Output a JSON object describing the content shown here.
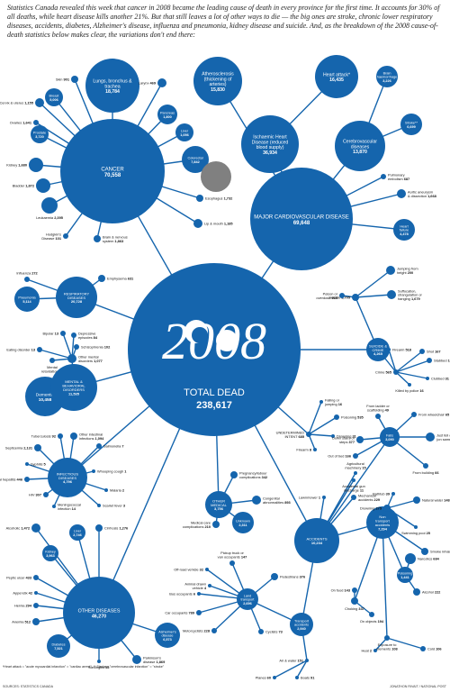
{
  "intro": "Statistics Canada revealed this week that cancer in 2008 became the leading cause of death in every province for the first time. It accounts for 30% of all deaths, while heart disease kills another 21%. But that still leaves a lot of other ways to die — the big ones are stroke, chronic lower respiratory diseases, accidents, diabetes, Alzheimer's disease, influenza and pneumonia, kidney disease and suicide. And, as the breakdown of the 2008 cause-of-death statistics below makes clear, the variations don't end there:",
  "footnote": "*Heart attack = \"acute myocardial infarction\" = \"cardiac arrest\". ** Stroke = \"cerebrovascular infarction\" = \"stroke\"",
  "source_left": "SOURCES: STATISTICS CANADA",
  "source_right": "JONATHON RIVAIT / NATIONAL POST",
  "colors": {
    "bubble": "#1565ad",
    "line": "#1565ad",
    "text": "#111111",
    "hole": "#808080"
  },
  "chart_data": {
    "type": "bubble-tree",
    "year": "2008",
    "total": {
      "name": "TOTAL DEAD",
      "value": "238,617"
    },
    "groups": [
      {
        "id": "cancer",
        "name": "CANCER",
        "value": "70,558",
        "children": [
          {
            "name": "Lungs, bronchus & trachea",
            "value": "18,784"
          },
          {
            "name": "Larynx",
            "value": "469"
          },
          {
            "name": "Pancreas",
            "value": "1,800"
          },
          {
            "name": "Liver",
            "value": "1,056"
          },
          {
            "name": "Colorectal",
            "value": "7,842"
          },
          {
            "name": "Esophagus",
            "value": "1,732"
          },
          {
            "name": "Lip & mouth",
            "value": "1,185"
          },
          {
            "name": "Brain & nervous system",
            "value": "1,863"
          },
          {
            "name": "Hodgkin's Disease",
            "value": "101"
          },
          {
            "name": "Leukaemia",
            "value": "2,395"
          },
          {
            "name": "Bladder",
            "value": "1,872"
          },
          {
            "name": "Kidney",
            "value": "1,680"
          },
          {
            "name": "Prostate",
            "value": "3,720"
          },
          {
            "name": "Ovaries",
            "value": "1,641"
          },
          {
            "name": "Cervix & uterus",
            "value": "1,155"
          },
          {
            "name": "Breast",
            "value": "5,006"
          },
          {
            "name": "Skin",
            "value": "901"
          }
        ]
      },
      {
        "id": "cardio",
        "name": "MAJOR CARDIOVASCULAR DISEASE",
        "value": "69,648",
        "children": [
          {
            "name": "Atherosclerosis (thickening of arteries)",
            "value": "15,830"
          },
          {
            "name": "Ischaemic Heart Disease (reduced blood supply)",
            "value": "36,934"
          },
          {
            "name": "Heart attack*",
            "value": "16,435"
          },
          {
            "name": "Brain haemorrhage",
            "value": "3,226"
          },
          {
            "name": "Stroke**",
            "value": "6,699"
          },
          {
            "name": "Cerebrovascular diseases",
            "value": "13,870"
          },
          {
            "name": "Pulmonary embolism",
            "value": "687"
          },
          {
            "name": "Aortic aneurysm & dissection",
            "value": "1,668"
          },
          {
            "name": "Heart failure",
            "value": "4,478"
          }
        ]
      },
      {
        "id": "resp",
        "name": "RESPIRATORY DISEASES",
        "value": "20,728",
        "children": [
          {
            "name": "Influenza",
            "value": "272"
          },
          {
            "name": "Pneumonia",
            "value": "5,114"
          },
          {
            "name": "Emphysema",
            "value": "631"
          }
        ]
      },
      {
        "id": "mental",
        "name": "MENTAL & BEHAVIORAL DISORDERS",
        "value": "11,535",
        "children": [
          {
            "name": "Dementia",
            "value": "10,458"
          },
          {
            "name": "Bipolar",
            "value": "13"
          },
          {
            "name": "Depressive episodes",
            "value": "84"
          },
          {
            "name": "Schizophrenia",
            "value": "102"
          },
          {
            "name": "Eating disorder",
            "value": "13"
          },
          {
            "name": "Other mental disorders",
            "value": "1,077"
          },
          {
            "name": "Mental retardation",
            "value": "32"
          }
        ]
      },
      {
        "id": "infect",
        "name": "INFECTIOUS DISEASES",
        "value": "4,796",
        "children": [
          {
            "name": "Tuberculosis",
            "value": "92"
          },
          {
            "name": "Other intestinal infections",
            "value": "1,094"
          },
          {
            "name": "Salmonella",
            "value": "7"
          },
          {
            "name": "Septicemia",
            "value": "2,131"
          },
          {
            "name": "Syphilis",
            "value": "5"
          },
          {
            "name": "Viral hepatitis",
            "value": "446"
          },
          {
            "name": "Whooping cough",
            "value": "1"
          },
          {
            "name": "Malaria",
            "value": "2"
          },
          {
            "name": "Scarlet fever",
            "value": "3"
          },
          {
            "name": "HIV",
            "value": "307"
          },
          {
            "name": "Meningococcal infection",
            "value": "14"
          }
        ]
      },
      {
        "id": "medical",
        "name": "OTHER MEDICAL",
        "value": "3,756",
        "children": [
          {
            "name": "Pregnancy/labour complications",
            "value": "342"
          },
          {
            "name": "Congenital abnormalities",
            "value": "893"
          },
          {
            "name": "Medical care complications",
            "value": "210"
          },
          {
            "name": "Unknown",
            "value": "2,311"
          }
        ]
      },
      {
        "id": "other",
        "name": "OTHER DISEASES",
        "value": "46,270",
        "children": [
          {
            "name": "Alcoholic",
            "value": "1,472"
          },
          {
            "name": "Liver",
            "value": "2,746"
          },
          {
            "name": "Cirrhosis",
            "value": "1,276"
          },
          {
            "name": "Kidney",
            "value": "3,963"
          },
          {
            "name": "Peptic ulcer",
            "value": "433"
          },
          {
            "name": "Appendix",
            "value": "42"
          },
          {
            "name": "Hernia",
            "value": "294"
          },
          {
            "name": "Anemia",
            "value": "512"
          },
          {
            "name": "Diabetes",
            "value": "7,521"
          },
          {
            "name": "Meningitis",
            "value": "55"
          },
          {
            "name": "Parkinson's disease",
            "value": "1,869"
          },
          {
            "name": "Alzheimer's disease",
            "value": "6,573"
          }
        ]
      },
      {
        "id": "suicide",
        "name": "SUICIDE & CRIME",
        "value": "4,265",
        "children": [
          {
            "name": "Suicide",
            "value": "3,705"
          },
          {
            "name": "Jumping from height",
            "value": "200"
          },
          {
            "name": "Suffocation, strangulation or hanging",
            "value": "1,679"
          },
          {
            "name": "Poison or overdose",
            "value": "935"
          },
          {
            "name": "Firearm",
            "value": "518"
          },
          {
            "name": "Shot",
            "value": "167"
          },
          {
            "name": "Stabbed",
            "value": "183"
          },
          {
            "name": "Crime",
            "value": "565"
          },
          {
            "name": "Killed by police",
            "value": "16"
          },
          {
            "name": "Clubbed",
            "value": "31"
          }
        ]
      },
      {
        "id": "undetermined",
        "name": "UNDETERMINED INTENT",
        "value": "685",
        "children": [
          {
            "name": "Falling or jumping",
            "value": "16"
          },
          {
            "name": "Poisoning",
            "value": "535"
          },
          {
            "name": "Drowning",
            "value": "31"
          },
          {
            "name": "Firearm",
            "value": "8"
          }
        ]
      },
      {
        "id": "accidents",
        "name": "ACCIDENTS",
        "value": "10,234",
        "children": [
          {
            "name": "Agricultural machinery",
            "value": "15"
          },
          {
            "name": "Accidental gun discharge",
            "value": "11"
          },
          {
            "name": "Lawnmower",
            "value": "1"
          },
          {
            "name": "Mechanical accidents",
            "value": "229"
          },
          {
            "name": "Falls",
            "value": "3,090"
          },
          {
            "name": "From ladder or scaffolding",
            "value": "49"
          },
          {
            "name": "From wheelchair",
            "value": "65"
          },
          {
            "name": "Down stairs or steps",
            "value": "377"
          },
          {
            "name": "Just fell over (on same level)",
            "value": "858"
          },
          {
            "name": "Out of bed",
            "value": "166"
          },
          {
            "name": "From building",
            "value": "66"
          },
          {
            "name": "Non transport accidents",
            "value": "7,294"
          },
          {
            "name": "Bathtub",
            "value": "39"
          },
          {
            "name": "Natural water",
            "value": "148"
          },
          {
            "name": "Drowning",
            "value": "275"
          },
          {
            "name": "Swimming pool",
            "value": "25"
          },
          {
            "name": "Smoke inhalation",
            "value": "275"
          },
          {
            "name": "Narcotics",
            "value": "684"
          },
          {
            "name": "Poisoning",
            "value": "1,441"
          },
          {
            "name": "Alcohol",
            "value": "222"
          },
          {
            "name": "On food",
            "value": "143"
          },
          {
            "name": "Choking",
            "value": "337"
          },
          {
            "name": "On objects",
            "value": "194"
          },
          {
            "name": "Exposure to elements",
            "value": "108"
          },
          {
            "name": "Heat",
            "value": "2"
          },
          {
            "name": "Cold",
            "value": "106"
          },
          {
            "name": "Transport accidents",
            "value": "2,940"
          },
          {
            "name": "Land transport",
            "value": "2,696"
          },
          {
            "name": "Pickup truck or van occupants",
            "value": "147"
          },
          {
            "name": "Off-road vehicle",
            "value": "32"
          },
          {
            "name": "Animal drawn vehicle",
            "value": "4"
          },
          {
            "name": "Pedestrians",
            "value": "376"
          },
          {
            "name": "Bus occupants",
            "value": "6"
          },
          {
            "name": "Car occupants",
            "value": "789"
          },
          {
            "name": "Motorcyclists",
            "value": "228"
          },
          {
            "name": "Cyclists",
            "value": "73"
          },
          {
            "name": "Air & water",
            "value": "151"
          },
          {
            "name": "Planes",
            "value": "60"
          },
          {
            "name": "Boats",
            "value": "91"
          }
        ]
      }
    ]
  }
}
